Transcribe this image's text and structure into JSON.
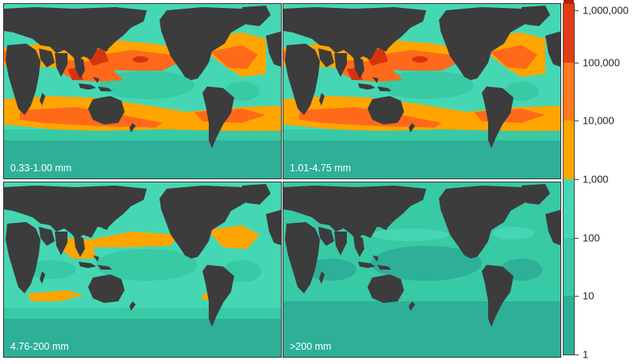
{
  "panels": [
    {
      "label": "0.33-1.00 mm",
      "level": "high"
    },
    {
      "label": "1.01-4.75 mm",
      "level": "high"
    },
    {
      "label": "4.76-200 mm",
      "level": "medium"
    },
    {
      "label": ">200 mm",
      "level": "low"
    }
  ],
  "colorbar": {
    "ticks": [
      "1,000,000",
      "100,000",
      "10,000",
      "1,000",
      "100",
      "10",
      "1"
    ],
    "colors": [
      "#2db097",
      "#38c9a5",
      "#45d7b4",
      "#ffa500",
      "#ff7a1e",
      "#e33c14",
      "#b41e0a"
    ],
    "scale": "log"
  },
  "colors": {
    "land": "#3c3c3c",
    "ocean_low": "#2db097",
    "ocean_mid": "#3dcfae",
    "ocean_high": "#55e2c2",
    "orange": "#ffa500",
    "red_orange": "#ff6a1a",
    "red": "#d8330f"
  }
}
